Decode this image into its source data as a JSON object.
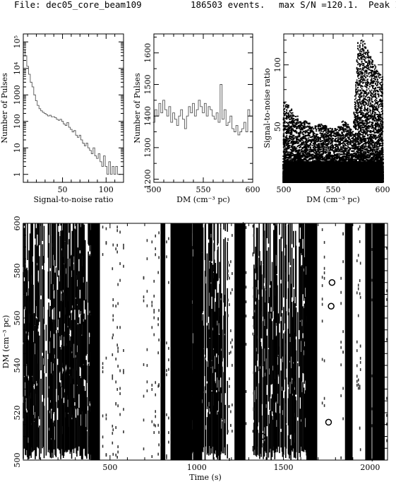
{
  "header": {
    "file_label": "File: dec05_core_beam109",
    "events": "186503 events.",
    "max_sn": "max S/N =120.1.",
    "peak": "Peak I"
  },
  "chart_data": [
    {
      "type": "histogram",
      "xlabel": "Signal-to-noise ratio",
      "ylabel": "Number of Pulses",
      "xlim": [
        5,
        120
      ],
      "ylim": [
        0.5,
        200000
      ],
      "yscale": "log",
      "x_ticks": [
        "50",
        "100"
      ],
      "y_ticks": [
        "1",
        "10",
        "100",
        "1000",
        "10⁴",
        "10⁵"
      ],
      "x": [
        6,
        8,
        10,
        12,
        14,
        16,
        18,
        20,
        22,
        24,
        26,
        28,
        30,
        32,
        34,
        36,
        38,
        40,
        42,
        44,
        46,
        48,
        50,
        52,
        54,
        56,
        58,
        60,
        62,
        64,
        66,
        68,
        70,
        72,
        74,
        76,
        78,
        80,
        82,
        84,
        86,
        88,
        90,
        92,
        94,
        96,
        98,
        100,
        102,
        104,
        106,
        108,
        110,
        112,
        114,
        116
      ],
      "values": [
        50000,
        30000,
        12000,
        6000,
        3000,
        2000,
        1000,
        600,
        400,
        300,
        250,
        220,
        200,
        180,
        160,
        170,
        150,
        150,
        140,
        120,
        110,
        120,
        100,
        80,
        70,
        90,
        60,
        50,
        40,
        45,
        30,
        25,
        30,
        20,
        15,
        12,
        15,
        10,
        8,
        6,
        10,
        5,
        4,
        6,
        3,
        2,
        5,
        2,
        1,
        3,
        1,
        2,
        1,
        2,
        1,
        1
      ]
    },
    {
      "type": "histogram",
      "xlabel": "DM (cm⁻³ pc)",
      "ylabel": "Number of Pulses",
      "xlim": [
        500,
        600
      ],
      "ylim": [
        1190,
        1660
      ],
      "x_ticks": [
        "500",
        "550",
        "600"
      ],
      "y_ticks": [
        "1200",
        "1300",
        "1400",
        "1500",
        "1600"
      ],
      "x": [
        500,
        502,
        504,
        506,
        508,
        510,
        512,
        514,
        516,
        518,
        520,
        522,
        524,
        526,
        528,
        530,
        532,
        534,
        536,
        538,
        540,
        542,
        544,
        546,
        548,
        550,
        552,
        554,
        556,
        558,
        560,
        562,
        564,
        566,
        568,
        570,
        572,
        574,
        576,
        578,
        580,
        582,
        584,
        586,
        588,
        590,
        592,
        594,
        596,
        598
      ],
      "values": [
        1380,
        1420,
        1400,
        1440,
        1410,
        1450,
        1420,
        1400,
        1430,
        1380,
        1410,
        1390,
        1370,
        1400,
        1420,
        1390,
        1360,
        1400,
        1430,
        1410,
        1440,
        1400,
        1420,
        1450,
        1430,
        1410,
        1440,
        1400,
        1430,
        1420,
        1400,
        1390,
        1410,
        1380,
        1500,
        1390,
        1420,
        1370,
        1380,
        1400,
        1360,
        1350,
        1370,
        1340,
        1350,
        1360,
        1380,
        1350,
        1420,
        1400
      ]
    },
    {
      "type": "scatter",
      "xlabel": "DM (cm⁻³ pc)",
      "ylabel": "Signal-to-noise ratio",
      "xlim": [
        500,
        600
      ],
      "ylim": [
        5,
        125
      ],
      "x_ticks": [
        "500",
        "550",
        "600"
      ],
      "y_ticks": [
        "50",
        "100"
      ],
      "note": "dense point cloud; upper envelope sampled below",
      "envelope_x": [
        500,
        505,
        510,
        515,
        520,
        525,
        530,
        535,
        540,
        545,
        550,
        555,
        560,
        565,
        570,
        575,
        580,
        585,
        590,
        595,
        600
      ],
      "envelope_y": [
        70,
        68,
        62,
        58,
        55,
        54,
        50,
        52,
        52,
        50,
        48,
        50,
        55,
        52,
        48,
        118,
        121,
        112,
        105,
        96,
        92
      ]
    },
    {
      "type": "scatter",
      "xlabel": "Time (s)",
      "ylabel": "DM (cm⁻³ pc)",
      "xlim": [
        0,
        2100
      ],
      "ylim": [
        500,
        600
      ],
      "x_ticks": [
        "500",
        "1000",
        "1500",
        "2000"
      ],
      "y_ticks": [
        "500",
        "520",
        "540",
        "560",
        "580",
        "600"
      ],
      "note": "vertical bands of single-pulse candidates spanning full DM range",
      "dense_bands": [
        [
          0,
          420
        ],
        [
          895,
          1180
        ],
        [
          1240,
          1260
        ],
        [
          1330,
          1640
        ]
      ],
      "strong_columns": [
        415,
        805,
        870,
        905,
        950,
        1005,
        1235,
        1265,
        1660,
        1680,
        1870,
        1880,
        1990,
        2025,
        2060
      ]
    }
  ]
}
